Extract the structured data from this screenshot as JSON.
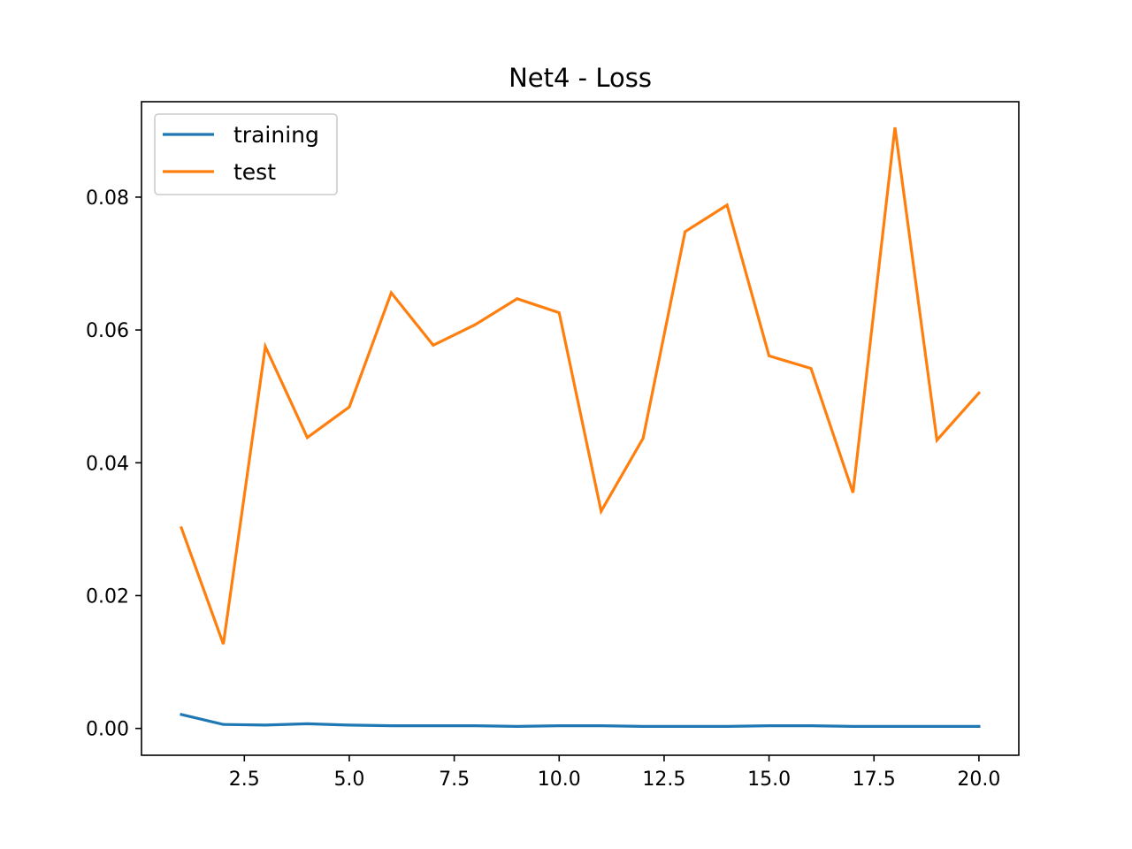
{
  "chart_data": {
    "type": "line",
    "title": "Net4 - Loss",
    "xlabel": "",
    "ylabel": "",
    "xlim": [
      0.05,
      20.95
    ],
    "ylim": [
      -0.00404,
      0.09437
    ],
    "x_ticks": [
      2.5,
      5.0,
      7.5,
      10.0,
      12.5,
      15.0,
      17.5,
      20.0
    ],
    "x_tick_labels": [
      "2.5",
      "5.0",
      "7.5",
      "10.0",
      "12.5",
      "15.0",
      "17.5",
      "20.0"
    ],
    "y_ticks": [
      0.0,
      0.02,
      0.04,
      0.06,
      0.08
    ],
    "y_tick_labels": [
      "0.00",
      "0.02",
      "0.04",
      "0.06",
      "0.08"
    ],
    "grid": false,
    "legend_position": "top-left",
    "x": [
      1,
      2,
      3,
      4,
      5,
      6,
      7,
      8,
      9,
      10,
      11,
      12,
      13,
      14,
      15,
      16,
      17,
      18,
      19,
      20
    ],
    "series": [
      {
        "name": "training",
        "color": "#1f77b4",
        "values": [
          0.0021,
          0.0006,
          0.0005,
          0.0007,
          0.0005,
          0.0004,
          0.0004,
          0.0004,
          0.0003,
          0.0004,
          0.0004,
          0.0003,
          0.0003,
          0.0003,
          0.0004,
          0.0004,
          0.0003,
          0.0003,
          0.0003,
          0.0003
        ]
      },
      {
        "name": "test",
        "color": "#ff7f0e",
        "values": [
          0.0302,
          0.0127,
          0.0575,
          0.0438,
          0.0484,
          0.0656,
          0.0577,
          0.0608,
          0.0647,
          0.0626,
          0.0327,
          0.0437,
          0.0748,
          0.0788,
          0.0561,
          0.0542,
          0.0355,
          0.0905,
          0.0434,
          0.0505
        ]
      }
    ]
  }
}
